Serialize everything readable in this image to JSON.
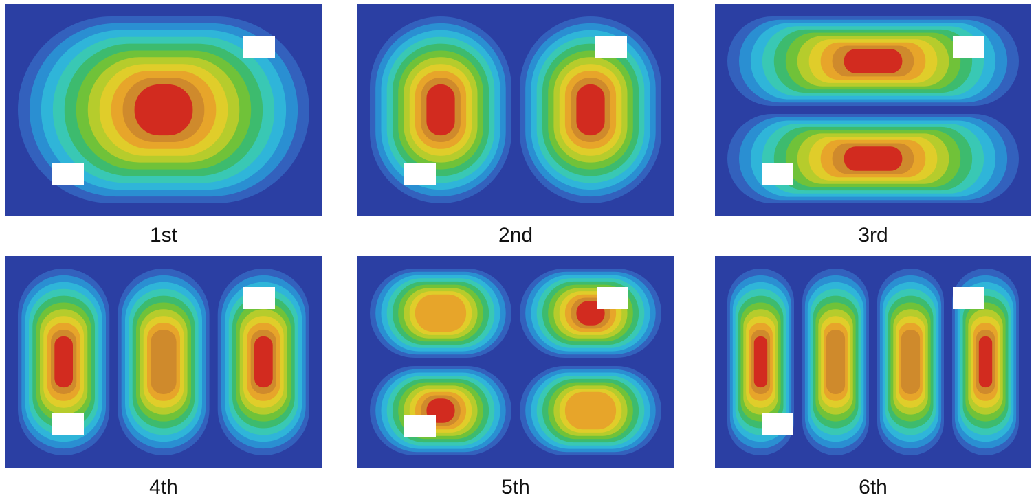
{
  "figure": {
    "modes": [
      {
        "label": "1st",
        "grid": [
          1,
          1
        ],
        "peak": [
          1
        ]
      },
      {
        "label": "2nd",
        "grid": [
          2,
          1
        ],
        "peak": [
          1,
          1
        ]
      },
      {
        "label": "3rd",
        "grid": [
          1,
          2
        ],
        "peak": [
          1,
          1
        ]
      },
      {
        "label": "4th",
        "grid": [
          3,
          1
        ],
        "peak": [
          1,
          0.9,
          1
        ]
      },
      {
        "label": "5th",
        "grid": [
          2,
          2
        ],
        "peak": [
          0.82,
          1,
          1,
          0.82
        ]
      },
      {
        "label": "6th",
        "grid": [
          4,
          1
        ],
        "peak": [
          1,
          0.9,
          0.9,
          1
        ]
      }
    ],
    "colors": {
      "background": "#2b3fa3",
      "contour_levels": [
        "#3361bd",
        "#2a8fd2",
        "#2fb5d9",
        "#39c8b4",
        "#3dbb6e",
        "#70c239",
        "#b6cc2c",
        "#e0cd2a",
        "#e7a52a",
        "#cf8a2c",
        "#d22b1f"
      ],
      "marker": "#ffffff"
    }
  }
}
